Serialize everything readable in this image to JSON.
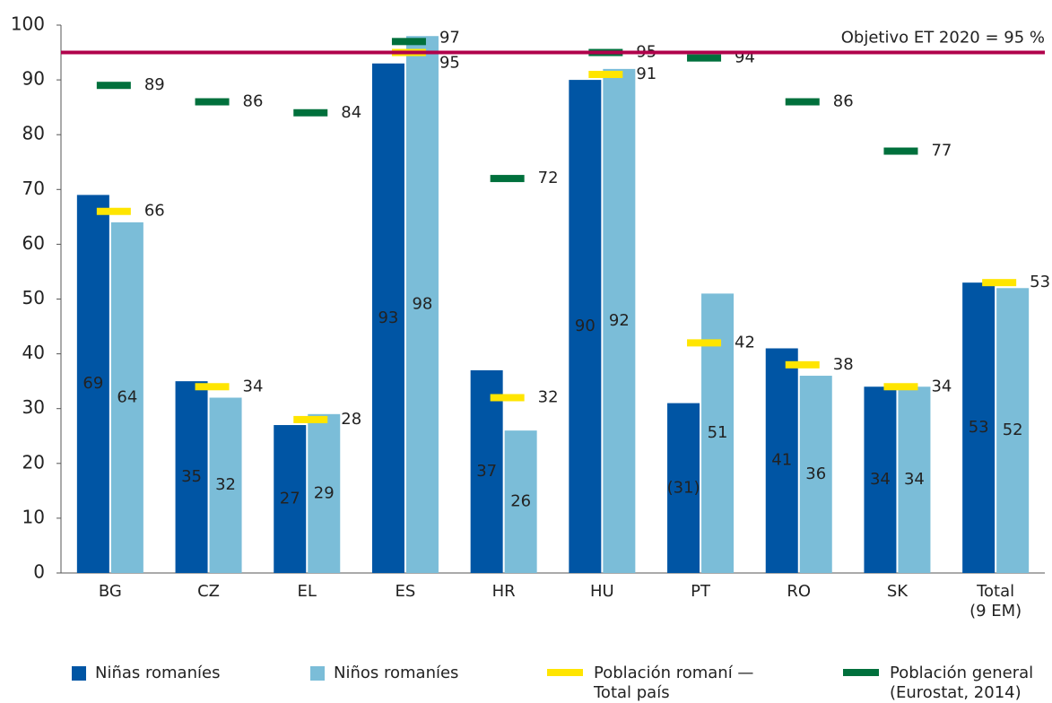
{
  "chart_data": {
    "type": "bar",
    "categories": [
      "BG",
      "CZ",
      "EL",
      "ES",
      "HR",
      "HU",
      "PT",
      "RO",
      "SK",
      "Total\n(9 EM)"
    ],
    "series": [
      {
        "name": "Niñas romaníes",
        "color": "#0055a4",
        "style": "bar",
        "values": [
          69,
          35,
          27,
          93,
          37,
          90,
          31,
          41,
          34,
          53
        ],
        "value_labels": [
          "69",
          "35",
          "27",
          "93",
          "37",
          "90",
          "(31)",
          "41",
          "34",
          "53"
        ]
      },
      {
        "name": "Niños romaníes",
        "color": "#7bbdd8",
        "style": "bar",
        "values": [
          64,
          32,
          29,
          98,
          26,
          92,
          51,
          36,
          34,
          52
        ]
      },
      {
        "name": "Población romaní —\nTotal país",
        "color": "#ffe500",
        "style": "dash",
        "values": [
          66,
          34,
          28,
          95,
          32,
          91,
          42,
          38,
          34,
          53
        ]
      },
      {
        "name": "Población general\n(Eurostat, 2014)",
        "color": "#00703c",
        "style": "dash",
        "values": [
          89,
          86,
          84,
          97,
          72,
          95,
          94,
          86,
          77,
          null
        ]
      }
    ],
    "target": {
      "value": 95,
      "label": "Objetivo ET 2020 = 95 %",
      "color": "#b0004b"
    },
    "ylim": [
      0,
      100
    ],
    "yticks": [
      0,
      10,
      20,
      30,
      40,
      50,
      60,
      70,
      80,
      90,
      100
    ],
    "grid": false
  }
}
